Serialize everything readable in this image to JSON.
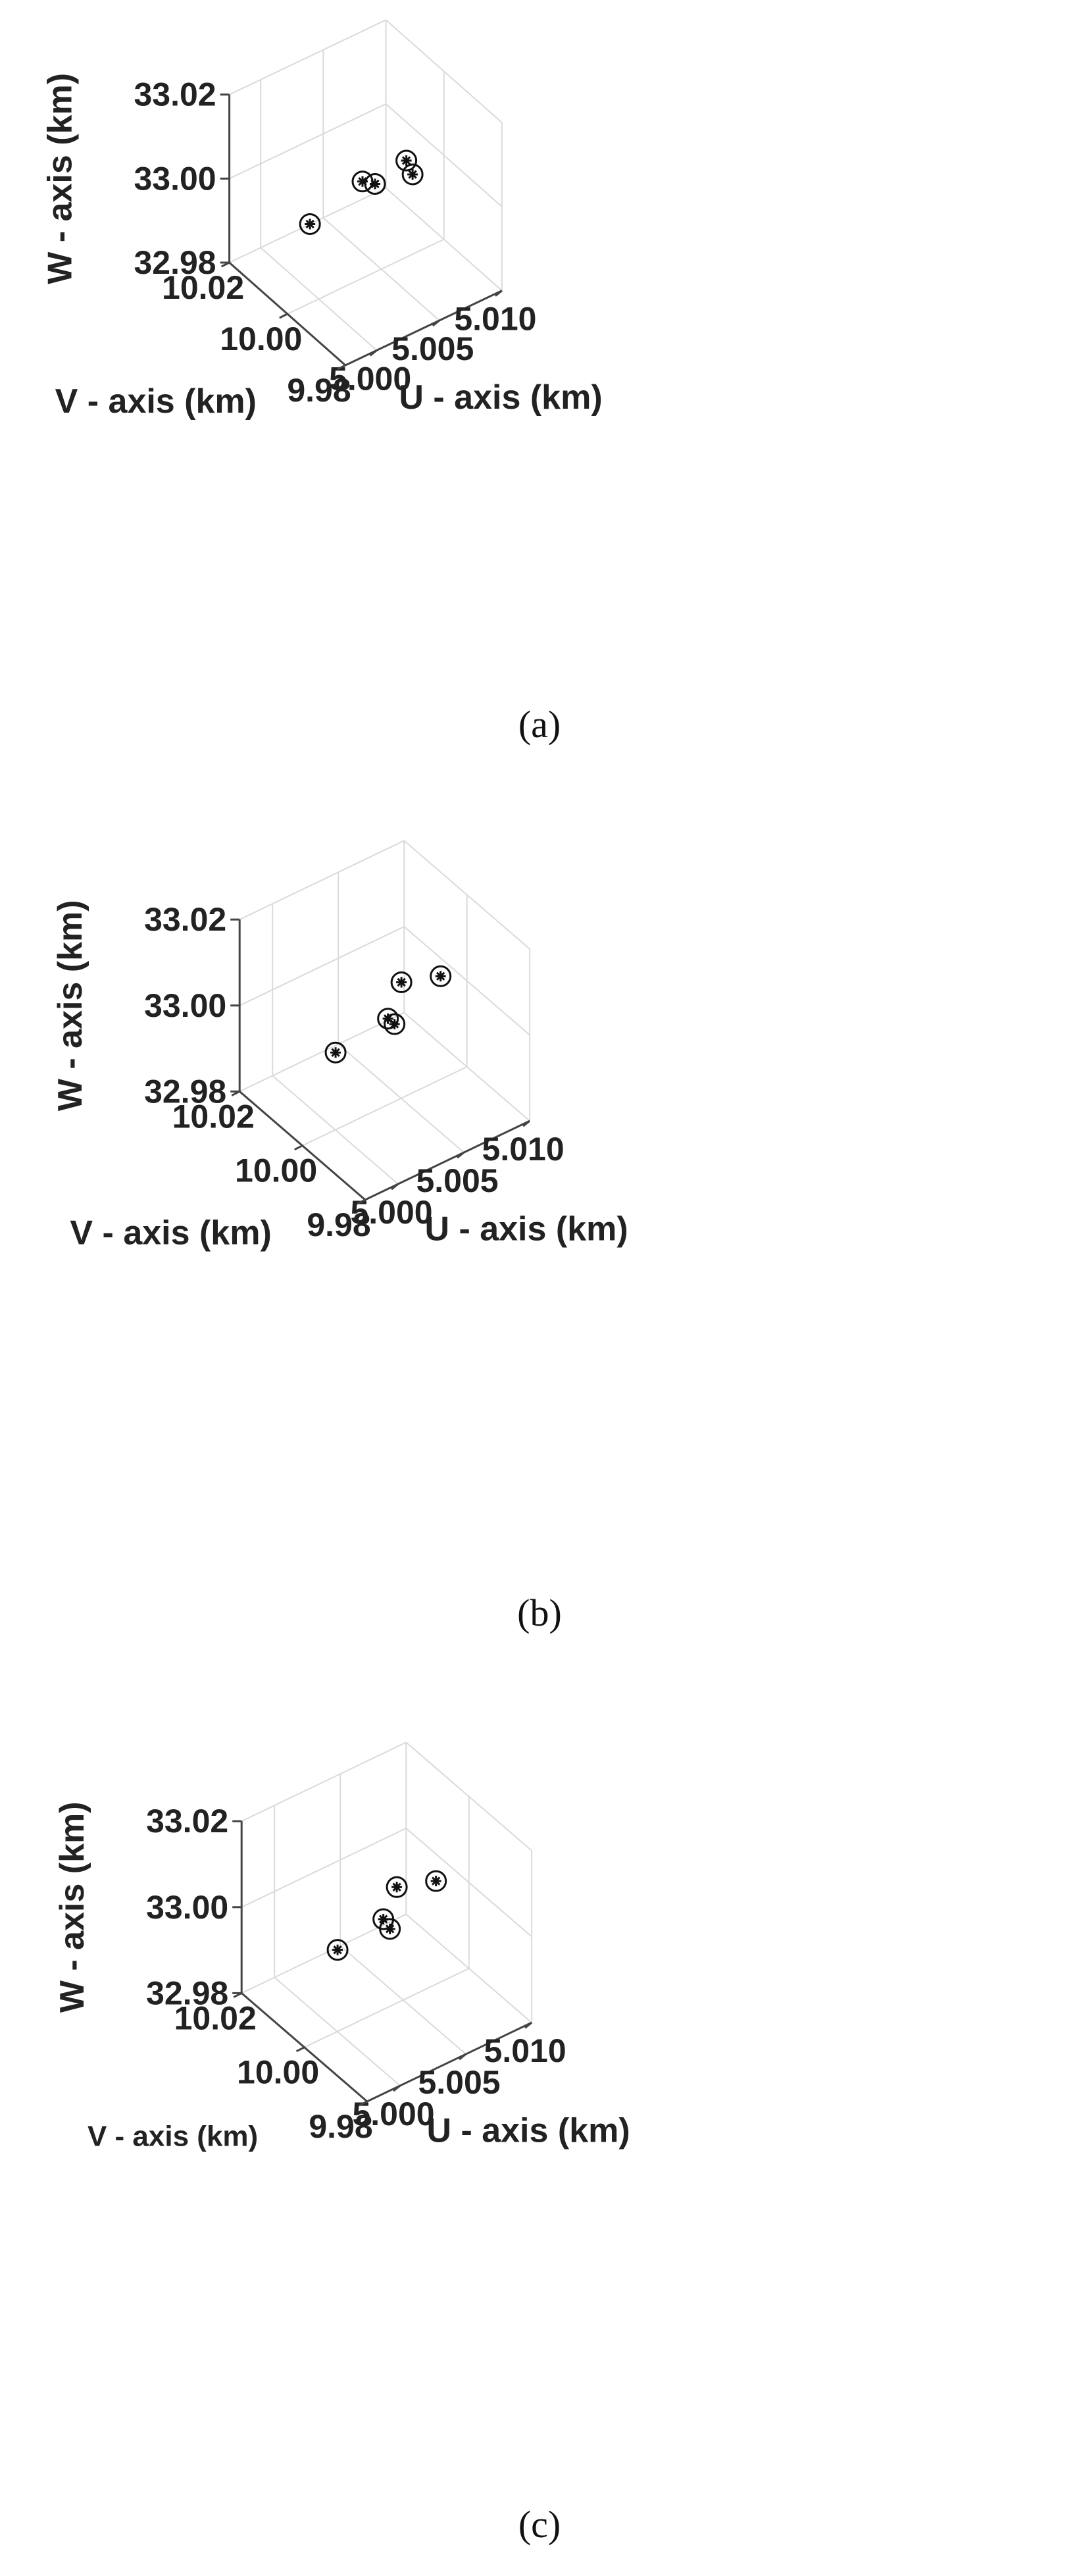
{
  "chart_data": [
    {
      "type": "scatter",
      "panel": "(a)",
      "xlabel": "U - axis (km)",
      "ylabel": "V - axis (km)",
      "zlabel": "W - axis (km)",
      "xticks": [
        "5.000",
        "5.005",
        "5.010"
      ],
      "yticks": [
        "10.02",
        "10.00",
        "9.98"
      ],
      "zticks": [
        "33.02",
        "33.00",
        "32.98"
      ],
      "xlim": [
        4.9975,
        5.01
      ],
      "ylim": [
        9.98,
        10.02
      ],
      "zlim": [
        32.98,
        33.02
      ],
      "grid": true,
      "points": [
        {
          "x": 5.0075,
          "y": 10.0,
          "z": 32.999
        },
        {
          "x": 5.007,
          "y": 10.0,
          "z": 33.003
        },
        {
          "x": 5.0045,
          "y": 10.0,
          "z": 33.001
        },
        {
          "x": 5.0035,
          "y": 10.0,
          "z": 33.003
        },
        {
          "x": 5.0,
          "y": 10.003,
          "z": 32.996
        }
      ]
    },
    {
      "type": "scatter",
      "panel": "(b)",
      "xlabel": "U - axis (km)",
      "ylabel": "V - axis (km)",
      "zlabel": "W - axis (km)",
      "xticks": [
        "5.000",
        "5.005",
        "5.010"
      ],
      "yticks": [
        "10.02",
        "10.00",
        "9.98"
      ],
      "zticks": [
        "33.02",
        "33.00",
        "32.98"
      ],
      "xlim": [
        4.9975,
        5.01
      ],
      "ylim": [
        9.98,
        10.02
      ],
      "zlim": [
        32.98,
        33.02
      ],
      "grid": true,
      "points": [
        {
          "x": 5.0055,
          "y": 10.002,
          "z": 33.005
        },
        {
          "x": 5.008,
          "y": 10.0,
          "z": 33.004
        },
        {
          "x": 5.004,
          "y": 10.0,
          "z": 33.0
        },
        {
          "x": 5.0045,
          "y": 10.0,
          "z": 32.998
        },
        {
          "x": 5.0005,
          "y": 10.002,
          "z": 32.996
        }
      ]
    },
    {
      "type": "scatter",
      "panel": "(c)",
      "xlabel": "U - axis (km)",
      "ylabel": "V - axis (km)",
      "zlabel": "W - axis (km)",
      "xticks": [
        "5.000",
        "5.005",
        "5.010"
      ],
      "yticks": [
        "10.02",
        "10.00",
        "9.98"
      ],
      "zticks": [
        "33.02",
        "33.00",
        "32.98"
      ],
      "xlim": [
        4.9975,
        5.01
      ],
      "ylim": [
        9.98,
        10.02
      ],
      "zlim": [
        32.98,
        33.02
      ],
      "grid": true,
      "points": [
        {
          "x": 5.005,
          "y": 10.002,
          "z": 33.005
        },
        {
          "x": 5.0075,
          "y": 10.0,
          "z": 33.004
        },
        {
          "x": 5.0035,
          "y": 10.0,
          "z": 33.001
        },
        {
          "x": 5.004,
          "y": 10.0,
          "z": 32.998
        },
        {
          "x": 5.0005,
          "y": 10.002,
          "z": 32.997
        }
      ]
    }
  ]
}
